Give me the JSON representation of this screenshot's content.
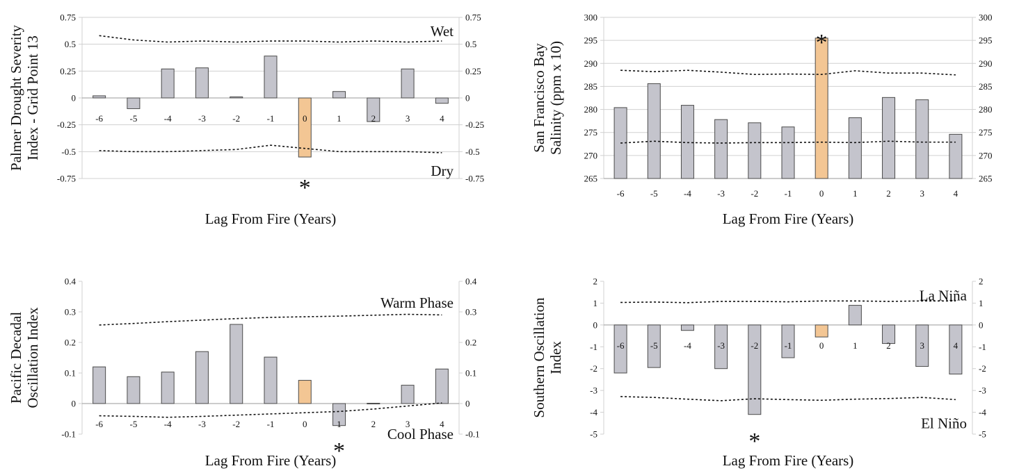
{
  "colors": {
    "bar": "#c4c4cc",
    "highlight": "#f3c694",
    "bar_stroke": "#4a4a4a",
    "grid": "#d0d0d0",
    "text": "#111111"
  },
  "chart_data": [
    {
      "type": "bar",
      "ylabel": [
        "Palmer Drought Severity",
        "Index - Grid Point 13"
      ],
      "xlabel": "Lag From Fire (Years)",
      "categories": [
        "-6",
        "-5",
        "-4",
        "-3",
        "-2",
        "-1",
        "0",
        "1",
        "2",
        "3",
        "4"
      ],
      "values": [
        0.02,
        -0.1,
        0.27,
        0.28,
        0.01,
        0.39,
        -0.55,
        0.06,
        -0.22,
        0.27,
        -0.05
      ],
      "highlight_index": 6,
      "ylim": [
        -0.75,
        0.75
      ],
      "ticks": [
        0.75,
        0.5,
        0.25,
        0,
        -0.25,
        -0.5,
        -0.75
      ],
      "tick_labels": [
        "0.75",
        "0.5",
        "0.25",
        "0",
        "-0.25",
        "-0.5",
        "-0.75"
      ],
      "category_labels_position": "axis",
      "grid": true,
      "upper_confidence": [
        0.58,
        0.54,
        0.52,
        0.53,
        0.52,
        0.53,
        0.53,
        0.52,
        0.53,
        0.52,
        0.53
      ],
      "lower_confidence": [
        -0.49,
        -0.5,
        -0.5,
        -0.49,
        -0.48,
        -0.44,
        -0.47,
        -0.5,
        -0.5,
        -0.5,
        -0.51
      ],
      "annotations": [
        {
          "text": "Wet",
          "x_index": 10,
          "y": 0.62,
          "anchor": "end"
        },
        {
          "text": "Dry",
          "x_index": 10,
          "y": -0.68,
          "anchor": "end"
        }
      ],
      "significant": [
        {
          "text": "*",
          "x_index": 6,
          "y": -0.75
        }
      ]
    },
    {
      "type": "bar",
      "ylabel": [
        "San Francisco Bay",
        "Salinity (ppm x 10)"
      ],
      "xlabel": "Lag From Fire (Years)",
      "categories": [
        "-6",
        "-5",
        "-4",
        "-3",
        "-2",
        "-1",
        "0",
        "1",
        "2",
        "3",
        "4"
      ],
      "values": [
        280.4,
        285.6,
        280.9,
        277.8,
        277.1,
        276.2,
        295.5,
        278.2,
        282.6,
        282.1,
        274.6
      ],
      "highlight_index": 6,
      "ylim": [
        265,
        300
      ],
      "ticks": [
        300,
        295,
        290,
        285,
        280,
        275,
        270,
        265
      ],
      "tick_labels": [
        "300",
        "295",
        "290",
        "285",
        "280",
        "275",
        "270",
        "265"
      ],
      "category_labels_position": "bottom",
      "grid": true,
      "upper_confidence": [
        288.5,
        288.2,
        288.5,
        288.1,
        287.6,
        287.7,
        287.6,
        288.4,
        287.9,
        287.9,
        287.5
      ],
      "lower_confidence": [
        272.7,
        273.1,
        272.8,
        272.7,
        272.8,
        272.8,
        272.9,
        272.8,
        273.1,
        272.9,
        272.9
      ],
      "annotations": [],
      "significant": [
        {
          "text": "*",
          "x_index": 6,
          "y": 296.5
        }
      ]
    },
    {
      "type": "bar",
      "ylabel": [
        "Pacific Decadal",
        "Oscillation Index"
      ],
      "xlabel": "Lag From Fire (Years)",
      "categories": [
        "-6",
        "-5",
        "-4",
        "-3",
        "-2",
        "-1",
        "0",
        "1",
        "2",
        "3",
        "4"
      ],
      "values": [
        0.12,
        0.088,
        0.103,
        0.17,
        0.259,
        0.152,
        0.076,
        -0.072,
        0.001,
        0.06,
        0.113
      ],
      "highlight_index": 6,
      "ylim": [
        -0.1,
        0.4
      ],
      "ticks": [
        0.4,
        0.3,
        0.2,
        0.1,
        0,
        -0.1
      ],
      "tick_labels": [
        "0.4",
        "0.3",
        "0.2",
        "0.1",
        "0",
        "-0.1"
      ],
      "category_labels_position": "axis",
      "grid": false,
      "upper_confidence": [
        0.257,
        0.262,
        0.268,
        0.273,
        0.278,
        0.282,
        0.284,
        0.286,
        0.289,
        0.292,
        0.29
      ],
      "lower_confidence": [
        -0.04,
        -0.042,
        -0.045,
        -0.042,
        -0.038,
        -0.034,
        -0.03,
        -0.026,
        -0.018,
        -0.008,
        0.002
      ],
      "annotations": [
        {
          "text": "Warm Phase",
          "x_index": 10,
          "y": 0.33,
          "anchor": "end"
        },
        {
          "text": "Cool Phase",
          "x_index": 10,
          "y": -0.1,
          "anchor": "end"
        }
      ],
      "significant": [
        {
          "text": "*",
          "x_index": 7,
          "y": -0.125
        }
      ]
    },
    {
      "type": "bar",
      "ylabel": [
        "Southern Oscillation",
        "Index"
      ],
      "xlabel": "Lag From Fire (Years)",
      "categories": [
        "-6",
        "-5",
        "-4",
        "-3",
        "-2",
        "-1",
        "0",
        "1",
        "2",
        "3",
        "4"
      ],
      "values": [
        -2.2,
        -1.95,
        -0.25,
        -2.0,
        -4.1,
        -1.5,
        -0.55,
        0.9,
        -0.85,
        -1.9,
        -2.25
      ],
      "highlight_index": 6,
      "ylim": [
        -5,
        2
      ],
      "ticks": [
        2,
        1,
        0,
        -1,
        -2,
        -3,
        -4,
        -5
      ],
      "tick_labels": [
        "2",
        "1",
        "0",
        "-1",
        "-2",
        "-3",
        "-4",
        "-5"
      ],
      "category_labels_position": "axis",
      "grid": false,
      "upper_confidence": [
        1.03,
        1.05,
        1.02,
        1.08,
        1.08,
        1.06,
        1.1,
        1.1,
        1.08,
        1.1,
        1.1
      ],
      "lower_confidence": [
        -3.28,
        -3.32,
        -3.4,
        -3.47,
        -3.38,
        -3.42,
        -3.45,
        -3.4,
        -3.37,
        -3.32,
        -3.42
      ],
      "annotations": [
        {
          "text": "La Niña",
          "x_index": 10,
          "y": 1.35,
          "anchor": "end"
        },
        {
          "text": "El Niño",
          "x_index": 10,
          "y": -4.5,
          "anchor": "end"
        }
      ],
      "significant": [
        {
          "text": "*",
          "x_index": 4,
          "y": -4.9
        }
      ]
    }
  ]
}
